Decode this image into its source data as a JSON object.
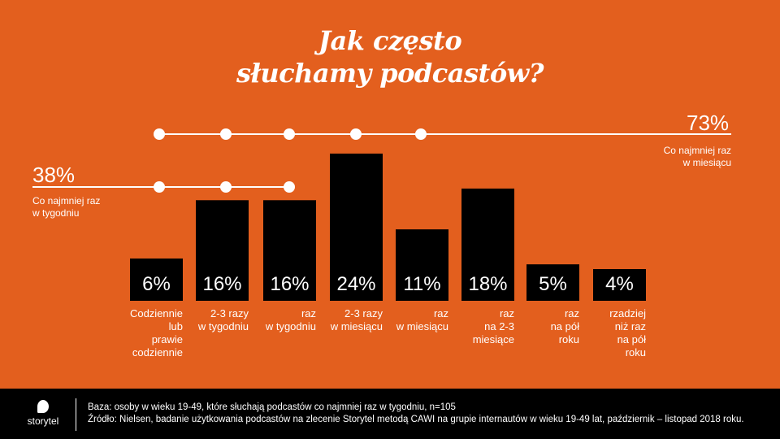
{
  "title_lines": [
    "Jak często",
    "słuchamy podcastów?"
  ],
  "monthly": {
    "value": "73%",
    "label_lines": [
      "Co najmniej raz",
      "w miesiącu"
    ]
  },
  "weekly": {
    "value": "38%",
    "label_lines": [
      "Co najmniej raz",
      "w tygodniu"
    ]
  },
  "colors": {
    "background": "#E35F1E",
    "bars": "#000000",
    "text": "#FFFFFF"
  },
  "chart_data": {
    "type": "bar",
    "categories": [
      "Codziennie lub prawie codziennie",
      "2-3 razy w tygodniu",
      "raz w tygodniu",
      "2-3 razy w miesiącu",
      "raz w miesiącu",
      "raz na 2-3 miesiące",
      "raz na pół roku",
      "rzadziej niż raz na pół roku"
    ],
    "category_lines": [
      [
        "Codziennie",
        "lub",
        "prawie",
        "codziennie"
      ],
      [
        "2-3 razy",
        "w tygodniu"
      ],
      [
        "raz",
        "w tygodniu"
      ],
      [
        "2-3 razy",
        "w miesiącu"
      ],
      [
        "raz",
        "w miesiącu"
      ],
      [
        "raz",
        "na 2-3",
        "miesiące"
      ],
      [
        "raz",
        "na pół",
        "roku"
      ],
      [
        "rzadziej",
        "niż raz",
        "na pół",
        "roku"
      ]
    ],
    "values": [
      6,
      16,
      16,
      24,
      11,
      18,
      5,
      4
    ],
    "data_labels": [
      "6%",
      "16%",
      "16%",
      "24%",
      "11%",
      "18%",
      "5%",
      "4%"
    ],
    "unit": "%"
  },
  "footer": {
    "brand": "storytel",
    "base": "Baza: osoby w wieku 19-49, które słuchają podcastów co najmniej raz w tygodniu, n=105",
    "source": "Źródło: Nielsen, badanie użytkowania podcastów na zlecenie Storytel metodą CAWI na grupie internautów w wieku 19-49 lat, październik – listopad 2018 roku."
  }
}
